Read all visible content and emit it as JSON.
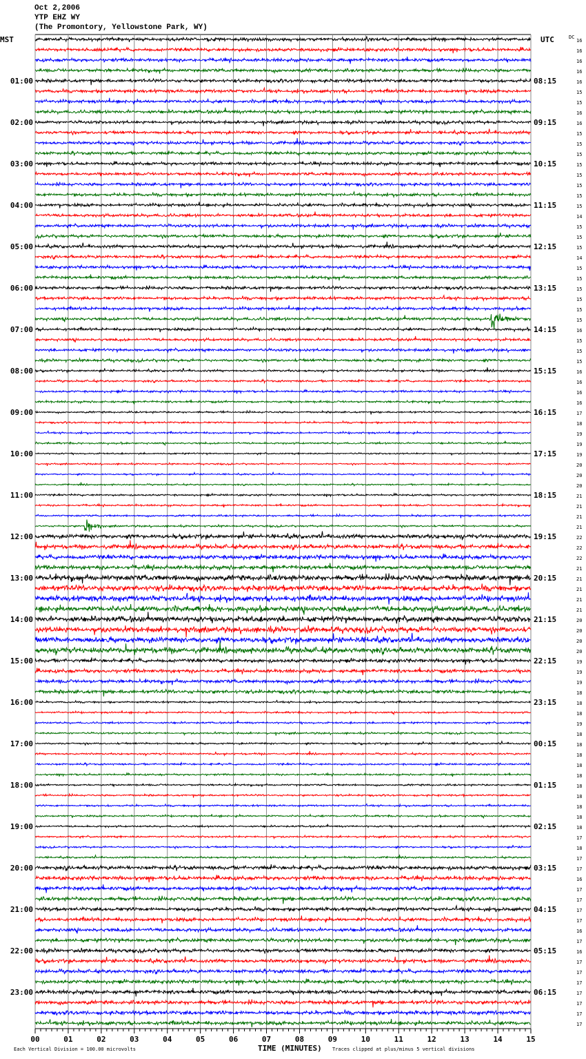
{
  "header": {
    "date": "Oct 2,2006",
    "station": "YTP EHZ WY",
    "location": "(The Promontory, Yellowstone Park, WY)"
  },
  "chart_data": {
    "type": "line",
    "subtype": "helicorder",
    "left_axis_title": "MST",
    "right_axis_title": "UTC",
    "dc_label": "DC",
    "xlabel": "TIME (MINUTES)",
    "xlim": [
      0,
      15
    ],
    "x_ticks": [
      "00",
      "01",
      "02",
      "03",
      "04",
      "05",
      "06",
      "07",
      "08",
      "09",
      "10",
      "11",
      "12",
      "13",
      "14",
      "15"
    ],
    "grid": true,
    "trace_colors": [
      "#000000",
      "#ff0000",
      "#0000ff",
      "#007000"
    ],
    "minutes_per_trace": 15,
    "mst_labels": [
      "01:00",
      "02:00",
      "03:00",
      "04:00",
      "05:00",
      "06:00",
      "07:00",
      "08:00",
      "09:00",
      "10:00",
      "11:00",
      "12:00",
      "13:00",
      "14:00",
      "15:00",
      "16:00",
      "17:00",
      "18:00",
      "19:00",
      "20:00",
      "21:00",
      "22:00",
      "23:00"
    ],
    "utc_labels": [
      "08:15",
      "09:15",
      "10:15",
      "11:15",
      "12:15",
      "13:15",
      "14:15",
      "15:15",
      "16:15",
      "17:15",
      "18:15",
      "19:15",
      "20:15",
      "21:15",
      "22:15",
      "23:15",
      "00:15",
      "01:15",
      "02:15",
      "03:15",
      "04:15",
      "05:15",
      "06:15"
    ],
    "dc_offsets": [
      16,
      16,
      16,
      16,
      16,
      15,
      15,
      16,
      16,
      15,
      15,
      15,
      15,
      15,
      15,
      15,
      15,
      14,
      15,
      15,
      15,
      14,
      15,
      15,
      15,
      15,
      15,
      15,
      16,
      15,
      15,
      15,
      16,
      16,
      16,
      16,
      17,
      18,
      19,
      19,
      19,
      20,
      20,
      20,
      21,
      21,
      21,
      21,
      22,
      22,
      22,
      21,
      21,
      21,
      21,
      21,
      20,
      20,
      20,
      20,
      19,
      19,
      19,
      18,
      18,
      18,
      19,
      18,
      18,
      18,
      18,
      18,
      18,
      18,
      18,
      18,
      18,
      17,
      18,
      17,
      17,
      16,
      17,
      17,
      17,
      17,
      16,
      17,
      16,
      17,
      17,
      17,
      17,
      17,
      17,
      17
    ],
    "noise_amplitude_divisions_by_hour": [
      0.55,
      0.55,
      0.5,
      0.5,
      0.5,
      0.5,
      0.5,
      0.45,
      0.35,
      0.3,
      0.25,
      0.3,
      0.7,
      0.95,
      0.95,
      0.6,
      0.3,
      0.3,
      0.3,
      0.3,
      0.65,
      0.6,
      0.6,
      0.65
    ],
    "events": [
      {
        "trace_start_mst": "06:45",
        "start_minute": 13.8,
        "end_minute": 14.9,
        "peak_divisions": 3.5
      },
      {
        "trace_start_mst": "11:45",
        "start_minute": 1.5,
        "end_minute": 2.2,
        "peak_divisions": 5
      }
    ],
    "scale_note": "Each Vertical Division =  100.00 microvolts",
    "clip_note": "Traces clipped at plus/minus 5 vertical divisions"
  }
}
